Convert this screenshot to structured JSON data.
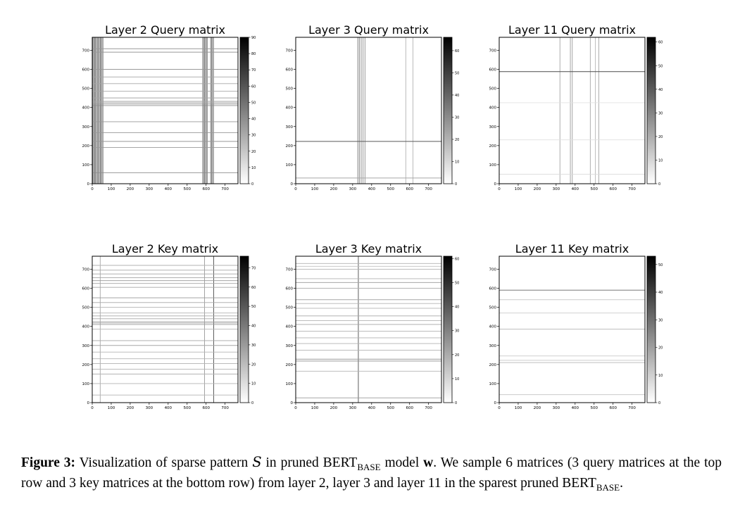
{
  "chart_data": [
    {
      "type": "heatmap",
      "title": "Layer 2 Query matrix",
      "xlim": [
        0,
        768
      ],
      "ylim": [
        0,
        768
      ],
      "xticks": [
        0,
        100,
        200,
        300,
        400,
        500,
        600,
        700
      ],
      "yticks": [
        0,
        100,
        200,
        300,
        400,
        500,
        600,
        700
      ],
      "colorbar": {
        "max": 90,
        "ticks": [
          0,
          10,
          20,
          30,
          40,
          50,
          60,
          70,
          80,
          90
        ]
      },
      "vertical_lines": [
        {
          "x": 3,
          "intensity": 0.55
        },
        {
          "x": 8,
          "intensity": 0.5
        },
        {
          "x": 12,
          "intensity": 0.6
        },
        {
          "x": 17,
          "intensity": 0.5
        },
        {
          "x": 22,
          "intensity": 0.55
        },
        {
          "x": 27,
          "intensity": 0.5
        },
        {
          "x": 32,
          "intensity": 0.55
        },
        {
          "x": 37,
          "intensity": 0.5
        },
        {
          "x": 42,
          "intensity": 0.6
        },
        {
          "x": 47,
          "intensity": 0.5
        },
        {
          "x": 52,
          "intensity": 0.55
        },
        {
          "x": 57,
          "intensity": 0.45
        },
        {
          "x": 582,
          "intensity": 0.5
        },
        {
          "x": 587,
          "intensity": 0.55
        },
        {
          "x": 592,
          "intensity": 0.5
        },
        {
          "x": 597,
          "intensity": 0.55
        },
        {
          "x": 602,
          "intensity": 0.5
        },
        {
          "x": 607,
          "intensity": 0.45
        },
        {
          "x": 624,
          "intensity": 0.55
        },
        {
          "x": 629,
          "intensity": 0.5
        },
        {
          "x": 634,
          "intensity": 0.55
        },
        {
          "x": 639,
          "intensity": 0.5
        }
      ],
      "horizontal_lines": [
        {
          "y": 58,
          "intensity": 0.45
        },
        {
          "y": 190,
          "intensity": 0.4
        },
        {
          "y": 222,
          "intensity": 0.4
        },
        {
          "y": 268,
          "intensity": 0.4
        },
        {
          "y": 325,
          "intensity": 0.4
        },
        {
          "y": 410,
          "intensity": 0.45
        },
        {
          "y": 418,
          "intensity": 0.4
        },
        {
          "y": 425,
          "intensity": 0.35
        },
        {
          "y": 432,
          "intensity": 0.35
        },
        {
          "y": 450,
          "intensity": 0.35
        },
        {
          "y": 485,
          "intensity": 0.35
        },
        {
          "y": 525,
          "intensity": 0.35
        },
        {
          "y": 560,
          "intensity": 0.35
        },
        {
          "y": 600,
          "intensity": 0.4
        },
        {
          "y": 690,
          "intensity": 0.4
        },
        {
          "y": 708,
          "intensity": 0.4
        }
      ]
    },
    {
      "type": "heatmap",
      "title": "Layer 3 Query matrix",
      "xlim": [
        0,
        768
      ],
      "ylim": [
        0,
        768
      ],
      "xticks": [
        0,
        100,
        200,
        300,
        400,
        500,
        600,
        700
      ],
      "yticks": [
        0,
        100,
        200,
        300,
        400,
        500,
        600,
        700
      ],
      "colorbar": {
        "max": 66,
        "ticks": [
          0,
          10,
          20,
          30,
          40,
          50,
          60
        ]
      },
      "vertical_lines": [
        {
          "x": 327,
          "intensity": 0.5
        },
        {
          "x": 335,
          "intensity": 0.55
        },
        {
          "x": 345,
          "intensity": 0.5
        },
        {
          "x": 355,
          "intensity": 0.45
        },
        {
          "x": 365,
          "intensity": 0.45
        },
        {
          "x": 580,
          "intensity": 0.3
        },
        {
          "x": 618,
          "intensity": 0.3
        }
      ],
      "horizontal_lines": [
        {
          "y": 30,
          "intensity": 0.35
        },
        {
          "y": 222,
          "intensity": 0.65
        }
      ]
    },
    {
      "type": "heatmap",
      "title": "Layer 11 Query matrix",
      "xlim": [
        0,
        768
      ],
      "ylim": [
        0,
        768
      ],
      "xticks": [
        0,
        100,
        200,
        300,
        400,
        500,
        600,
        700
      ],
      "yticks": [
        0,
        100,
        200,
        300,
        400,
        500,
        600,
        700
      ],
      "colorbar": {
        "max": 62,
        "ticks": [
          0,
          10,
          20,
          30,
          40,
          50,
          60
        ]
      },
      "vertical_lines": [
        {
          "x": 320,
          "intensity": 0.35
        },
        {
          "x": 375,
          "intensity": 0.4
        },
        {
          "x": 385,
          "intensity": 0.4
        },
        {
          "x": 480,
          "intensity": 0.35
        },
        {
          "x": 507,
          "intensity": 0.3
        },
        {
          "x": 525,
          "intensity": 0.35
        }
      ],
      "horizontal_lines": [
        {
          "y": 50,
          "intensity": 0.15
        },
        {
          "y": 230,
          "intensity": 0.12
        },
        {
          "y": 425,
          "intensity": 0.12
        },
        {
          "y": 588,
          "intensity": 0.7
        }
      ]
    },
    {
      "type": "heatmap",
      "title": "Layer 2 Key matrix",
      "xlim": [
        0,
        768
      ],
      "ylim": [
        0,
        768
      ],
      "xticks": [
        0,
        100,
        200,
        300,
        400,
        500,
        600,
        700
      ],
      "yticks": [
        0,
        100,
        200,
        300,
        400,
        500,
        600,
        700
      ],
      "colorbar": {
        "max": 76,
        "ticks": [
          0,
          10,
          20,
          30,
          40,
          50,
          60,
          70
        ]
      },
      "vertical_lines": [
        {
          "x": 42,
          "intensity": 0.35
        },
        {
          "x": 592,
          "intensity": 0.4
        },
        {
          "x": 640,
          "intensity": 0.7
        }
      ],
      "horizontal_lines": [
        {
          "y": 40,
          "intensity": 0.3
        },
        {
          "y": 100,
          "intensity": 0.3
        },
        {
          "y": 150,
          "intensity": 0.3
        },
        {
          "y": 175,
          "intensity": 0.3
        },
        {
          "y": 205,
          "intensity": 0.3
        },
        {
          "y": 230,
          "intensity": 0.3
        },
        {
          "y": 265,
          "intensity": 0.3
        },
        {
          "y": 300,
          "intensity": 0.35
        },
        {
          "y": 325,
          "intensity": 0.35
        },
        {
          "y": 385,
          "intensity": 0.3
        },
        {
          "y": 410,
          "intensity": 0.4
        },
        {
          "y": 418,
          "intensity": 0.4
        },
        {
          "y": 425,
          "intensity": 0.35
        },
        {
          "y": 440,
          "intensity": 0.35
        },
        {
          "y": 455,
          "intensity": 0.35
        },
        {
          "y": 470,
          "intensity": 0.3
        },
        {
          "y": 500,
          "intensity": 0.3
        },
        {
          "y": 525,
          "intensity": 0.35
        },
        {
          "y": 550,
          "intensity": 0.4
        },
        {
          "y": 605,
          "intensity": 0.35
        },
        {
          "y": 625,
          "intensity": 0.35
        },
        {
          "y": 640,
          "intensity": 0.4
        },
        {
          "y": 655,
          "intensity": 0.35
        },
        {
          "y": 675,
          "intensity": 0.35
        },
        {
          "y": 695,
          "intensity": 0.35
        },
        {
          "y": 720,
          "intensity": 0.3
        }
      ]
    },
    {
      "type": "heatmap",
      "title": "Layer 3 Key matrix",
      "xlim": [
        0,
        768
      ],
      "ylim": [
        0,
        768
      ],
      "xticks": [
        0,
        100,
        200,
        300,
        400,
        500,
        600,
        700
      ],
      "yticks": [
        0,
        100,
        200,
        300,
        400,
        500,
        600,
        700
      ],
      "colorbar": {
        "max": 61,
        "ticks": [
          0,
          10,
          20,
          30,
          40,
          50,
          60
        ]
      },
      "vertical_lines": [
        {
          "x": 330,
          "intensity": 0.7
        }
      ],
      "horizontal_lines": [
        {
          "y": 25,
          "intensity": 0.4
        },
        {
          "y": 165,
          "intensity": 0.3
        },
        {
          "y": 218,
          "intensity": 0.45
        },
        {
          "y": 228,
          "intensity": 0.4
        },
        {
          "y": 275,
          "intensity": 0.3
        },
        {
          "y": 310,
          "intensity": 0.3
        },
        {
          "y": 340,
          "intensity": 0.3
        },
        {
          "y": 375,
          "intensity": 0.3
        },
        {
          "y": 410,
          "intensity": 0.35
        },
        {
          "y": 430,
          "intensity": 0.3
        },
        {
          "y": 455,
          "intensity": 0.35
        },
        {
          "y": 495,
          "intensity": 0.3
        },
        {
          "y": 520,
          "intensity": 0.3
        },
        {
          "y": 540,
          "intensity": 0.35
        },
        {
          "y": 600,
          "intensity": 0.3
        },
        {
          "y": 630,
          "intensity": 0.35
        },
        {
          "y": 650,
          "intensity": 0.3
        },
        {
          "y": 700,
          "intensity": 0.3
        },
        {
          "y": 715,
          "intensity": 0.25
        },
        {
          "y": 730,
          "intensity": 0.3
        }
      ]
    },
    {
      "type": "heatmap",
      "title": "Layer 11 Key matrix",
      "xlim": [
        0,
        768
      ],
      "ylim": [
        0,
        768
      ],
      "xticks": [
        0,
        100,
        200,
        300,
        400,
        500,
        600,
        700
      ],
      "yticks": [
        0,
        100,
        200,
        300,
        400,
        500,
        600,
        700
      ],
      "colorbar": {
        "max": 53,
        "ticks": [
          0,
          10,
          20,
          30,
          40,
          50
        ]
      },
      "vertical_lines": [],
      "horizontal_lines": [
        {
          "y": 42,
          "intensity": 0.2
        },
        {
          "y": 210,
          "intensity": 0.25
        },
        {
          "y": 222,
          "intensity": 0.2
        },
        {
          "y": 245,
          "intensity": 0.2
        },
        {
          "y": 385,
          "intensity": 0.3
        },
        {
          "y": 470,
          "intensity": 0.2
        },
        {
          "y": 540,
          "intensity": 0.2
        },
        {
          "y": 590,
          "intensity": 0.6
        }
      ]
    }
  ],
  "caption": {
    "label": "Figure 3:",
    "part1": "Visualization of sparse pattern",
    "symbol_s": "S",
    "part2": "in pruned",
    "bert": "BERT",
    "base": "BASE",
    "part3": "model",
    "w": "w",
    "part4": ". We sample 6 matrices (3 query matrices at the top row and 3 key matrices at the bottom row) from layer 2, layer 3 and layer 11 in the sparest pruned",
    "end": "."
  }
}
